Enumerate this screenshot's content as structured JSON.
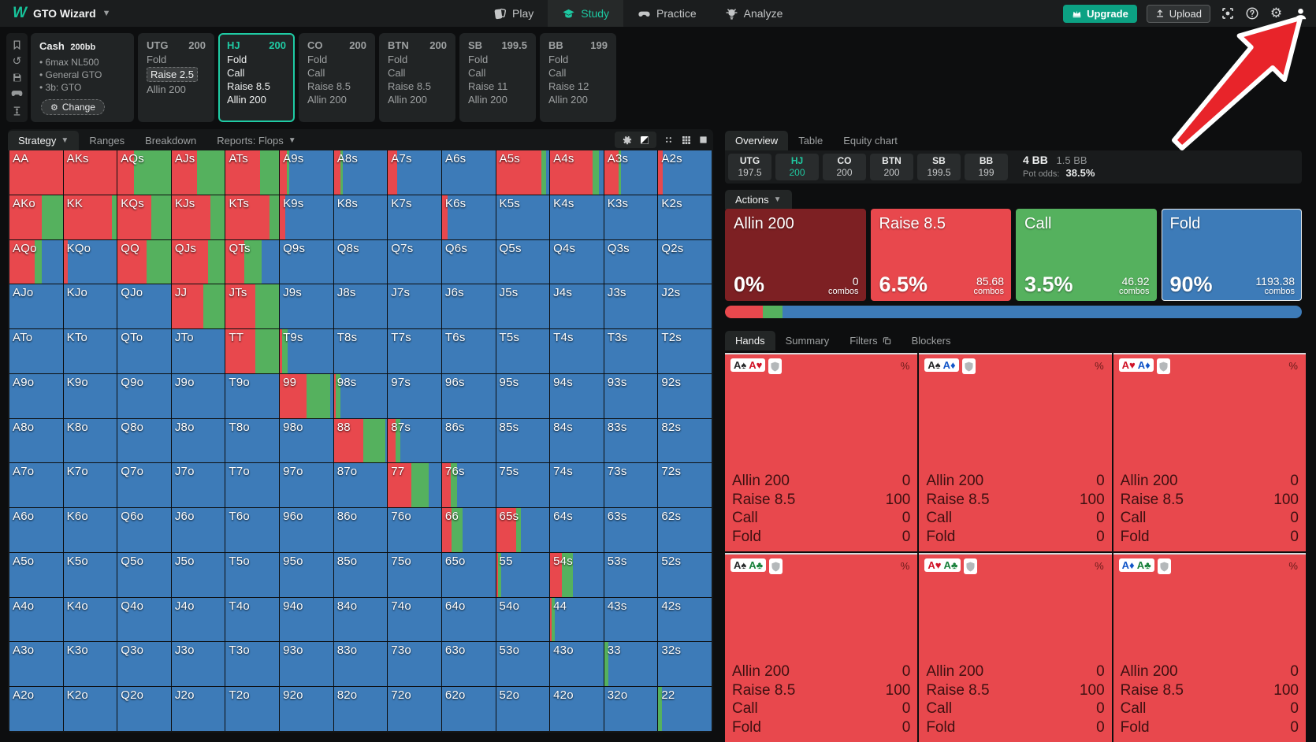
{
  "app": {
    "brand": "GTO Wizard",
    "nav": [
      {
        "label": "Play",
        "icon": "cards-icon",
        "active": false
      },
      {
        "label": "Study",
        "icon": "graduation-cap-icon",
        "active": true
      },
      {
        "label": "Practice",
        "icon": "gamepad-icon",
        "active": false
      },
      {
        "label": "Analyze",
        "icon": "lightbulb-icon",
        "active": false
      }
    ],
    "upgrade_label": "Upgrade",
    "upload_label": "Upload",
    "topbar_icons": [
      "screenshot-icon",
      "help-icon",
      "settings-icon",
      "account-icon"
    ]
  },
  "sidebar_icons": [
    "bookmark-icon",
    "history-icon",
    "save-icon",
    "gamepad-icon",
    "stack-depth-icon"
  ],
  "solution": {
    "type_label": "Cash",
    "stack_label": "200bb",
    "bullets": [
      "6max NL500",
      "General GTO",
      "3b: GTO"
    ],
    "change_label": "Change"
  },
  "positions": [
    {
      "name": "UTG",
      "stack": "200",
      "selected": false,
      "actions": [
        {
          "label": "Fold",
          "chip": false
        },
        {
          "label": "Raise 2.5",
          "chip": true
        },
        {
          "label": "Allin 200",
          "chip": false
        }
      ]
    },
    {
      "name": "HJ",
      "stack": "200",
      "selected": true,
      "actions": [
        {
          "label": "Fold",
          "chip": false
        },
        {
          "label": "Call",
          "chip": false
        },
        {
          "label": "Raise 8.5",
          "chip": false
        },
        {
          "label": "Allin 200",
          "chip": false
        }
      ]
    },
    {
      "name": "CO",
      "stack": "200",
      "selected": false,
      "actions": [
        {
          "label": "Fold",
          "chip": false
        },
        {
          "label": "Call",
          "chip": false
        },
        {
          "label": "Raise 8.5",
          "chip": false
        },
        {
          "label": "Allin 200",
          "chip": false
        }
      ]
    },
    {
      "name": "BTN",
      "stack": "200",
      "selected": false,
      "actions": [
        {
          "label": "Fold",
          "chip": false
        },
        {
          "label": "Call",
          "chip": false
        },
        {
          "label": "Raise 8.5",
          "chip": false
        },
        {
          "label": "Allin 200",
          "chip": false
        }
      ]
    },
    {
      "name": "SB",
      "stack": "199.5",
      "selected": false,
      "actions": [
        {
          "label": "Fold",
          "chip": false
        },
        {
          "label": "Call",
          "chip": false
        },
        {
          "label": "Raise 11",
          "chip": false
        },
        {
          "label": "Allin 200",
          "chip": false
        }
      ]
    },
    {
      "name": "BB",
      "stack": "199",
      "selected": false,
      "actions": [
        {
          "label": "Fold",
          "chip": false
        },
        {
          "label": "Call",
          "chip": false
        },
        {
          "label": "Raise 12",
          "chip": false
        },
        {
          "label": "Allin 200",
          "chip": false
        }
      ]
    }
  ],
  "matrix": {
    "tabs": [
      {
        "label": "Strategy",
        "caret": true,
        "active": true
      },
      {
        "label": "Ranges",
        "caret": false,
        "active": false
      },
      {
        "label": "Breakdown",
        "caret": false,
        "active": false
      },
      {
        "label": "Reports: Flops",
        "caret": true,
        "active": false
      }
    ],
    "toolbar_icons": [
      "chip-icon",
      "contrast-icon",
      "dots-icon",
      "grid-icon",
      "square-icon"
    ],
    "rows": [
      [
        [
          "AA",
          "r100"
        ],
        [
          "AKs",
          "r100"
        ],
        [
          "AQs",
          "r30 g70"
        ],
        [
          "AJs",
          "r48 g52"
        ],
        [
          "ATs",
          "r65 g35"
        ],
        [
          "A9s",
          "r13 g4 b83"
        ],
        [
          "A8s",
          "r12 g5 b83"
        ],
        [
          "A7s",
          "r18 b82"
        ],
        [
          "A6s",
          "b100"
        ],
        [
          "A5s",
          "r85 g9 b6"
        ],
        [
          "A4s",
          "r79 g12 b9"
        ],
        [
          "A3s",
          "r27 g4 b69"
        ],
        [
          "A2s",
          "r8 b92"
        ]
      ],
      [
        [
          "AKo",
          "r61 g39"
        ],
        [
          "KK",
          "r91 g9"
        ],
        [
          "KQs",
          "r64 g36"
        ],
        [
          "KJs",
          "r73 g27"
        ],
        [
          "KTs",
          "r82 g18"
        ],
        [
          "K9s",
          "r10 b90"
        ],
        [
          "K8s",
          "b100"
        ],
        [
          "K7s",
          "b100"
        ],
        [
          "K6s",
          "r10 b90"
        ],
        [
          "K5s",
          "b100"
        ],
        [
          "K4s",
          "b100"
        ],
        [
          "K3s",
          "b100"
        ],
        [
          "K2s",
          "b100"
        ]
      ],
      [
        [
          "AQo",
          "r48 g13 b39"
        ],
        [
          "KQo",
          "r8 b92"
        ],
        [
          "QQ",
          "r55 g45"
        ],
        [
          "QJs",
          "r68 g32"
        ],
        [
          "QTs",
          "r35 g33 b32"
        ],
        [
          "Q9s",
          "b100"
        ],
        [
          "Q8s",
          "b100"
        ],
        [
          "Q7s",
          "b100"
        ],
        [
          "Q6s",
          "b100"
        ],
        [
          "Q5s",
          "b100"
        ],
        [
          "Q4s",
          "b100"
        ],
        [
          "Q3s",
          "b100"
        ],
        [
          "Q2s",
          "b100"
        ]
      ],
      [
        [
          "AJo",
          "b100"
        ],
        [
          "KJo",
          "b100"
        ],
        [
          "QJo",
          "b100"
        ],
        [
          "JJ",
          "r59 g41"
        ],
        [
          "JTs",
          "r55 g45"
        ],
        [
          "J9s",
          "b100"
        ],
        [
          "J8s",
          "b100"
        ],
        [
          "J7s",
          "b100"
        ],
        [
          "J6s",
          "b100"
        ],
        [
          "J5s",
          "b100"
        ],
        [
          "J4s",
          "b100"
        ],
        [
          "J3s",
          "b100"
        ],
        [
          "J2s",
          "b100"
        ]
      ],
      [
        [
          "ATo",
          "b100"
        ],
        [
          "KTo",
          "b100"
        ],
        [
          "QTo",
          "b100"
        ],
        [
          "JTo",
          "b100"
        ],
        [
          "TT",
          "r55 g45"
        ],
        [
          "T9s",
          "r5 g10 b85"
        ],
        [
          "T8s",
          "b100"
        ],
        [
          "T7s",
          "b100"
        ],
        [
          "T6s",
          "b100"
        ],
        [
          "T5s",
          "b100"
        ],
        [
          "T4s",
          "b100"
        ],
        [
          "T3s",
          "b100"
        ],
        [
          "T2s",
          "b100"
        ]
      ],
      [
        [
          "A9o",
          "b100"
        ],
        [
          "K9o",
          "b100"
        ],
        [
          "Q9o",
          "b100"
        ],
        [
          "J9o",
          "b100"
        ],
        [
          "T9o",
          "b100"
        ],
        [
          "99",
          "r50 g45 b5"
        ],
        [
          "98s",
          "r3 g10 b87"
        ],
        [
          "97s",
          "b100"
        ],
        [
          "96s",
          "b100"
        ],
        [
          "95s",
          "b100"
        ],
        [
          "94s",
          "b100"
        ],
        [
          "93s",
          "b100"
        ],
        [
          "92s",
          "b100"
        ]
      ],
      [
        [
          "A8o",
          "b100"
        ],
        [
          "K8o",
          "b100"
        ],
        [
          "Q8o",
          "b100"
        ],
        [
          "J8o",
          "b100"
        ],
        [
          "T8o",
          "b100"
        ],
        [
          "98o",
          "b100"
        ],
        [
          "88",
          "r55 g42 b3"
        ],
        [
          "87s",
          "r15 g8 b77"
        ],
        [
          "86s",
          "b100"
        ],
        [
          "85s",
          "b100"
        ],
        [
          "84s",
          "b100"
        ],
        [
          "83s",
          "b100"
        ],
        [
          "82s",
          "b100"
        ]
      ],
      [
        [
          "A7o",
          "b100"
        ],
        [
          "K7o",
          "b100"
        ],
        [
          "Q7o",
          "b100"
        ],
        [
          "J7o",
          "b100"
        ],
        [
          "T7o",
          "b100"
        ],
        [
          "97o",
          "b100"
        ],
        [
          "87o",
          "b100"
        ],
        [
          "77",
          "r44 g33 b23"
        ],
        [
          "76s",
          "r16 g12 b72"
        ],
        [
          "75s",
          "b100"
        ],
        [
          "74s",
          "b100"
        ],
        [
          "73s",
          "b100"
        ],
        [
          "72s",
          "b100"
        ]
      ],
      [
        [
          "A6o",
          "b100"
        ],
        [
          "K6o",
          "b100"
        ],
        [
          "Q6o",
          "b100"
        ],
        [
          "J6o",
          "b100"
        ],
        [
          "T6o",
          "b100"
        ],
        [
          "96o",
          "b100"
        ],
        [
          "86o",
          "b100"
        ],
        [
          "76o",
          "b100"
        ],
        [
          "66",
          "r18 g20 b62"
        ],
        [
          "65s",
          "r38 g8 b54"
        ],
        [
          "64s",
          "b100"
        ],
        [
          "63s",
          "b100"
        ],
        [
          "62s",
          "b100"
        ]
      ],
      [
        [
          "A5o",
          "b100"
        ],
        [
          "K5o",
          "b100"
        ],
        [
          "Q5o",
          "b100"
        ],
        [
          "J5o",
          "b100"
        ],
        [
          "T5o",
          "b100"
        ],
        [
          "95o",
          "b100"
        ],
        [
          "85o",
          "b100"
        ],
        [
          "75o",
          "b100"
        ],
        [
          "65o",
          "b100"
        ],
        [
          "55",
          "r4 g6 b90"
        ],
        [
          "54s",
          "r22 g20 b58"
        ],
        [
          "53s",
          "b100"
        ],
        [
          "52s",
          "b100"
        ]
      ],
      [
        [
          "A4o",
          "b100"
        ],
        [
          "K4o",
          "b100"
        ],
        [
          "Q4o",
          "b100"
        ],
        [
          "J4o",
          "b100"
        ],
        [
          "T4o",
          "b100"
        ],
        [
          "94o",
          "b100"
        ],
        [
          "84o",
          "b100"
        ],
        [
          "74o",
          "b100"
        ],
        [
          "64o",
          "b100"
        ],
        [
          "54o",
          "b100"
        ],
        [
          "44",
          "r3 g5 b92"
        ],
        [
          "43s",
          "b100"
        ],
        [
          "42s",
          "b100"
        ]
      ],
      [
        [
          "A3o",
          "b100"
        ],
        [
          "K3o",
          "b100"
        ],
        [
          "Q3o",
          "b100"
        ],
        [
          "J3o",
          "b100"
        ],
        [
          "T3o",
          "b100"
        ],
        [
          "93o",
          "b100"
        ],
        [
          "83o",
          "b100"
        ],
        [
          "73o",
          "b100"
        ],
        [
          "63o",
          "b100"
        ],
        [
          "53o",
          "b100"
        ],
        [
          "43o",
          "b100"
        ],
        [
          "33",
          "g8 b92"
        ],
        [
          "32s",
          "b100"
        ]
      ],
      [
        [
          "A2o",
          "b100"
        ],
        [
          "K2o",
          "b100"
        ],
        [
          "Q2o",
          "b100"
        ],
        [
          "J2o",
          "b100"
        ],
        [
          "T2o",
          "b100"
        ],
        [
          "92o",
          "b100"
        ],
        [
          "82o",
          "b100"
        ],
        [
          "72o",
          "b100"
        ],
        [
          "62o",
          "b100"
        ],
        [
          "52o",
          "b100"
        ],
        [
          "42o",
          "b100"
        ],
        [
          "32o",
          "b100"
        ],
        [
          "22",
          "g7 b93"
        ]
      ]
    ]
  },
  "overview": {
    "tabs": [
      {
        "label": "Overview",
        "active": true
      },
      {
        "label": "Table",
        "active": false
      },
      {
        "label": "Equity chart",
        "active": false
      }
    ],
    "chips": [
      {
        "pos": "UTG",
        "stack": "197.5",
        "active": false
      },
      {
        "pos": "HJ",
        "stack": "200",
        "active": true
      },
      {
        "pos": "CO",
        "stack": "200",
        "active": false
      },
      {
        "pos": "BTN",
        "stack": "200",
        "active": false
      },
      {
        "pos": "SB",
        "stack": "199.5",
        "active": false
      },
      {
        "pos": "BB",
        "stack": "199",
        "active": false
      }
    ],
    "pot": {
      "amount": "4 BB",
      "second": "1.5 BB",
      "odds_label": "Pot odds:",
      "odds_value": "38.5%"
    }
  },
  "actions_panel": {
    "label": "Actions",
    "combos_label": "combos",
    "cards": [
      {
        "label": "Allin 200",
        "pct": "0%",
        "combos": "0",
        "color_key": "allin",
        "outlined": false
      },
      {
        "label": "Raise 8.5",
        "pct": "6.5%",
        "combos": "85.68",
        "color_key": "raise",
        "outlined": false
      },
      {
        "label": "Call",
        "pct": "3.5%",
        "combos": "46.92",
        "color_key": "call",
        "outlined": false
      },
      {
        "label": "Fold",
        "pct": "90%",
        "combos": "1193.38",
        "color_key": "fold",
        "outlined": true
      }
    ],
    "bar": [
      {
        "color_key": "raise",
        "pct": 6.5
      },
      {
        "color_key": "call",
        "pct": 3.5
      },
      {
        "color_key": "fold",
        "pct": 90
      }
    ]
  },
  "hands_panel": {
    "tabs": [
      {
        "label": "Hands",
        "active": true,
        "icon": null
      },
      {
        "label": "Summary",
        "active": false,
        "icon": null
      },
      {
        "label": "Filters",
        "active": false,
        "icon": "copy-icon"
      },
      {
        "label": "Blockers",
        "active": false,
        "icon": null
      }
    ],
    "pct_symbol": "%",
    "cards": [
      {
        "combo": [
          [
            "A",
            "spade"
          ],
          [
            "A",
            "heart"
          ]
        ],
        "rows": [
          [
            "Allin 200",
            "0"
          ],
          [
            "Raise 8.5",
            "100"
          ],
          [
            "Call",
            "0"
          ],
          [
            "Fold",
            "0"
          ]
        ]
      },
      {
        "combo": [
          [
            "A",
            "spade"
          ],
          [
            "A",
            "diamond"
          ]
        ],
        "rows": [
          [
            "Allin 200",
            "0"
          ],
          [
            "Raise 8.5",
            "100"
          ],
          [
            "Call",
            "0"
          ],
          [
            "Fold",
            "0"
          ]
        ]
      },
      {
        "combo": [
          [
            "A",
            "heart"
          ],
          [
            "A",
            "diamond"
          ]
        ],
        "rows": [
          [
            "Allin 200",
            "0"
          ],
          [
            "Raise 8.5",
            "100"
          ],
          [
            "Call",
            "0"
          ],
          [
            "Fold",
            "0"
          ]
        ]
      },
      {
        "combo": [
          [
            "A",
            "spade"
          ],
          [
            "A",
            "club"
          ]
        ],
        "rows": [
          [
            "Allin 200",
            "0"
          ],
          [
            "Raise 8.5",
            "100"
          ],
          [
            "Call",
            "0"
          ],
          [
            "Fold",
            "0"
          ]
        ]
      },
      {
        "combo": [
          [
            "A",
            "heart"
          ],
          [
            "A",
            "club"
          ]
        ],
        "rows": [
          [
            "Allin 200",
            "0"
          ],
          [
            "Raise 8.5",
            "100"
          ],
          [
            "Call",
            "0"
          ],
          [
            "Fold",
            "0"
          ]
        ]
      },
      {
        "combo": [
          [
            "A",
            "diamond"
          ],
          [
            "A",
            "club"
          ]
        ],
        "rows": [
          [
            "Allin 200",
            "0"
          ],
          [
            "Raise 8.5",
            "100"
          ],
          [
            "Call",
            "0"
          ],
          [
            "Fold",
            "0"
          ]
        ]
      }
    ]
  },
  "colors": {
    "raise": "#e8484d",
    "call": "#55b15e",
    "fold": "#3d7bb8",
    "allin": "#7d2023",
    "accent": "#1dc9a2",
    "suit_spade": "#26282a",
    "suit_heart": "#d01327",
    "suit_diamond": "#1356c8",
    "suit_club": "#18803a"
  },
  "annotation": {
    "type": "arrow",
    "points_to": "account-icon",
    "fill": "#e8242a",
    "outline": "#ffffff"
  }
}
